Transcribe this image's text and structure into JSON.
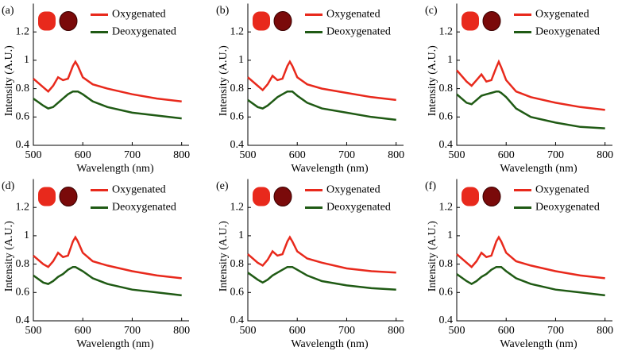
{
  "chart_data": [
    {
      "type": "line",
      "panel_label": "(a)",
      "xlabel": "Wavelength (nm)",
      "ylabel": "Intensity (A.U.)",
      "x": [
        500,
        520,
        530,
        540,
        550,
        560,
        570,
        580,
        585,
        590,
        600,
        620,
        650,
        700,
        750,
        800
      ],
      "series": [
        {
          "name": "Oxygenated",
          "color": "#e8291c",
          "values": [
            0.87,
            0.81,
            0.78,
            0.82,
            0.88,
            0.86,
            0.87,
            0.96,
            0.99,
            0.96,
            0.88,
            0.83,
            0.8,
            0.76,
            0.73,
            0.71
          ]
        },
        {
          "name": "Deoxygenated",
          "color": "#1f5a14",
          "values": [
            0.73,
            0.68,
            0.66,
            0.67,
            0.7,
            0.73,
            0.76,
            0.78,
            0.78,
            0.78,
            0.76,
            0.71,
            0.67,
            0.63,
            0.61,
            0.59
          ]
        }
      ],
      "xlim": [
        500,
        815
      ],
      "ylim": [
        0.4,
        1.4
      ],
      "xticks": [
        500,
        600,
        700,
        800
      ],
      "yticks": [
        0.4,
        0.6,
        0.8,
        1,
        1.2
      ]
    },
    {
      "type": "line",
      "panel_label": "(b)",
      "xlabel": "Wavelength (nm)",
      "ylabel": "Intensity (A.U.)",
      "x": [
        500,
        520,
        530,
        540,
        550,
        560,
        570,
        580,
        585,
        590,
        600,
        620,
        650,
        700,
        750,
        800
      ],
      "series": [
        {
          "name": "Oxygenated",
          "color": "#e8291c",
          "values": [
            0.88,
            0.82,
            0.79,
            0.83,
            0.89,
            0.86,
            0.87,
            0.96,
            0.99,
            0.96,
            0.88,
            0.83,
            0.8,
            0.77,
            0.74,
            0.72
          ]
        },
        {
          "name": "Deoxygenated",
          "color": "#1f5a14",
          "values": [
            0.72,
            0.67,
            0.66,
            0.68,
            0.71,
            0.74,
            0.76,
            0.78,
            0.78,
            0.78,
            0.75,
            0.7,
            0.66,
            0.63,
            0.6,
            0.58
          ]
        }
      ],
      "xlim": [
        500,
        815
      ],
      "ylim": [
        0.4,
        1.4
      ],
      "xticks": [
        500,
        600,
        700,
        800
      ],
      "yticks": [
        0.4,
        0.6,
        0.8,
        1,
        1.2
      ]
    },
    {
      "type": "line",
      "panel_label": "(c)",
      "xlabel": "Wavelength (nm)",
      "ylabel": "Intensity (A.U.)",
      "x": [
        500,
        520,
        530,
        540,
        550,
        560,
        570,
        580,
        585,
        590,
        600,
        620,
        650,
        700,
        750,
        800
      ],
      "series": [
        {
          "name": "Oxygenated",
          "color": "#e8291c",
          "values": [
            0.93,
            0.85,
            0.82,
            0.86,
            0.9,
            0.85,
            0.86,
            0.95,
            0.99,
            0.95,
            0.86,
            0.78,
            0.74,
            0.7,
            0.67,
            0.65
          ]
        },
        {
          "name": "Deoxygenated",
          "color": "#1f5a14",
          "values": [
            0.76,
            0.7,
            0.69,
            0.72,
            0.75,
            0.76,
            0.77,
            0.78,
            0.78,
            0.77,
            0.74,
            0.66,
            0.6,
            0.56,
            0.53,
            0.52
          ]
        }
      ],
      "xlim": [
        500,
        815
      ],
      "ylim": [
        0.4,
        1.4
      ],
      "xticks": [
        500,
        600,
        700,
        800
      ],
      "yticks": [
        0.4,
        0.6,
        0.8,
        1,
        1.2
      ]
    },
    {
      "type": "line",
      "panel_label": "(d)",
      "xlabel": "Wavelength (nm)",
      "ylabel": "Intensity (A.U.)",
      "x": [
        500,
        520,
        530,
        540,
        550,
        560,
        570,
        580,
        585,
        590,
        600,
        620,
        650,
        700,
        750,
        800
      ],
      "series": [
        {
          "name": "Oxygenated",
          "color": "#e8291c",
          "values": [
            0.86,
            0.8,
            0.78,
            0.82,
            0.88,
            0.85,
            0.86,
            0.96,
            0.99,
            0.96,
            0.88,
            0.82,
            0.79,
            0.75,
            0.72,
            0.7
          ]
        },
        {
          "name": "Deoxygenated",
          "color": "#1f5a14",
          "values": [
            0.72,
            0.67,
            0.66,
            0.68,
            0.71,
            0.73,
            0.76,
            0.78,
            0.78,
            0.77,
            0.75,
            0.7,
            0.66,
            0.62,
            0.6,
            0.58
          ]
        }
      ],
      "xlim": [
        500,
        815
      ],
      "ylim": [
        0.4,
        1.4
      ],
      "xticks": [
        500,
        600,
        700,
        800
      ],
      "yticks": [
        0.4,
        0.6,
        0.8,
        1,
        1.2
      ]
    },
    {
      "type": "line",
      "panel_label": "(e)",
      "xlabel": "Wavelength (nm)",
      "ylabel": "Intensity (A.U.)",
      "x": [
        500,
        520,
        530,
        540,
        550,
        560,
        570,
        580,
        585,
        590,
        600,
        620,
        650,
        700,
        750,
        800
      ],
      "series": [
        {
          "name": "Oxygenated",
          "color": "#e8291c",
          "values": [
            0.87,
            0.81,
            0.79,
            0.83,
            0.89,
            0.86,
            0.87,
            0.96,
            0.99,
            0.96,
            0.89,
            0.84,
            0.81,
            0.77,
            0.75,
            0.74
          ]
        },
        {
          "name": "Deoxygenated",
          "color": "#1f5a14",
          "values": [
            0.74,
            0.69,
            0.67,
            0.69,
            0.72,
            0.74,
            0.76,
            0.78,
            0.78,
            0.78,
            0.76,
            0.72,
            0.68,
            0.65,
            0.63,
            0.62
          ]
        }
      ],
      "xlim": [
        500,
        815
      ],
      "ylim": [
        0.4,
        1.4
      ],
      "xticks": [
        500,
        600,
        700,
        800
      ],
      "yticks": [
        0.4,
        0.6,
        0.8,
        1,
        1.2
      ]
    },
    {
      "type": "line",
      "panel_label": "(f)",
      "xlabel": "Wavelength (nm)",
      "ylabel": "Intensity (A.U.)",
      "x": [
        500,
        520,
        530,
        540,
        550,
        560,
        570,
        580,
        585,
        590,
        600,
        620,
        650,
        700,
        750,
        800
      ],
      "series": [
        {
          "name": "Oxygenated",
          "color": "#e8291c",
          "values": [
            0.87,
            0.81,
            0.78,
            0.82,
            0.88,
            0.85,
            0.86,
            0.96,
            0.99,
            0.96,
            0.88,
            0.82,
            0.79,
            0.75,
            0.72,
            0.7
          ]
        },
        {
          "name": "Deoxygenated",
          "color": "#1f5a14",
          "values": [
            0.73,
            0.68,
            0.66,
            0.68,
            0.71,
            0.73,
            0.76,
            0.78,
            0.78,
            0.78,
            0.75,
            0.7,
            0.66,
            0.62,
            0.6,
            0.58
          ]
        }
      ],
      "xlim": [
        500,
        815
      ],
      "ylim": [
        0.4,
        1.4
      ],
      "xticks": [
        500,
        600,
        700,
        800
      ],
      "yticks": [
        0.4,
        0.6,
        0.8,
        1,
        1.2
      ]
    }
  ]
}
